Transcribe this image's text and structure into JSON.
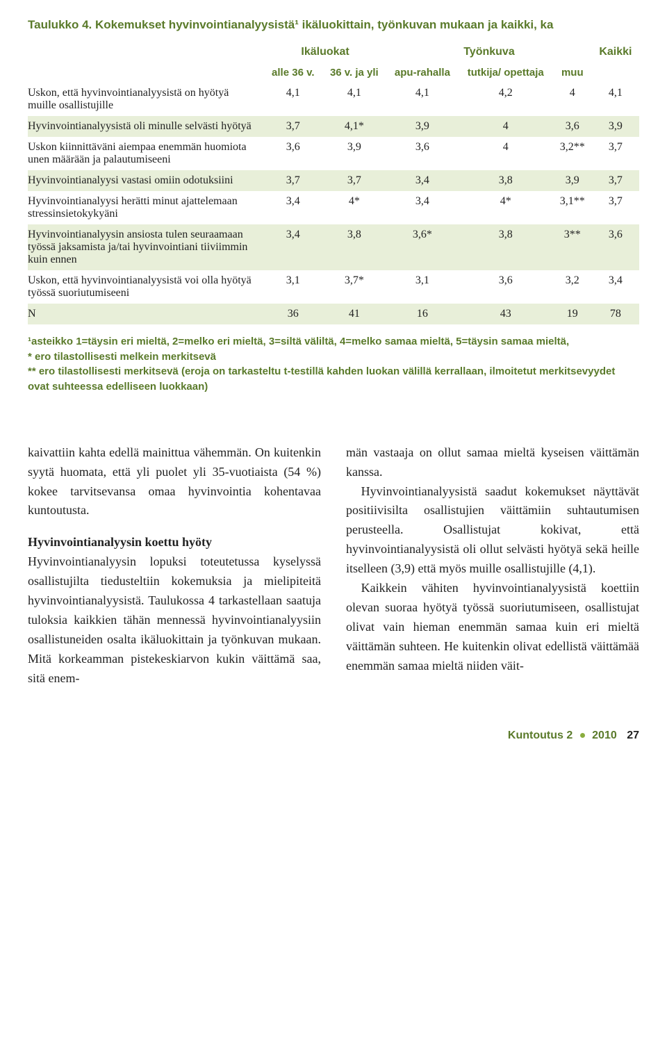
{
  "colors": {
    "accent": "#5a7a2a",
    "shade_bg": "#e8efd9",
    "text": "#222222",
    "page_bg": "#ffffff",
    "dot": "#8aad3e"
  },
  "typography": {
    "title_font": "Arial, sans-serif",
    "title_size_pt": 13,
    "body_font": "Georgia, serif",
    "body_size_pt": 13.5
  },
  "table": {
    "title": "Taulukko 4. Kokemukset hyvinvointianalyysistä¹ ikäluokittain, työnkuvan mukaan ja kaikki, ka",
    "group_headers": {
      "col0": "",
      "ikaluokat": "Ikäluokat",
      "tyonkuva": "Työnkuva",
      "kaikki": "Kaikki"
    },
    "sub_headers": {
      "c1": "alle 36 v.",
      "c2": "36 v. ja yli",
      "c3": "apu-rahalla",
      "c4": "tutkija/ opettaja",
      "c5": "muu"
    },
    "rows": [
      {
        "shade": false,
        "label": "Uskon, että hyvinvointianalyysistä on hyötyä muille osallistujille",
        "v": [
          "4,1",
          "4,1",
          "4,1",
          "4,2",
          "4",
          "4,1"
        ]
      },
      {
        "shade": true,
        "label": "Hyvinvointianalyysistä oli minulle selvästi hyötyä",
        "v": [
          "3,7",
          "4,1*",
          "3,9",
          "4",
          "3,6",
          "3,9"
        ]
      },
      {
        "shade": false,
        "label": "Uskon kiinnittäväni aiempaa enemmän huomiota unen määrään ja palautumiseeni",
        "v": [
          "3,6",
          "3,9",
          "3,6",
          "4",
          "3,2**",
          "3,7"
        ]
      },
      {
        "shade": true,
        "label": "Hyvinvointianalyysi vastasi omiin odotuksiini",
        "v": [
          "3,7",
          "3,7",
          "3,4",
          "3,8",
          "3,9",
          "3,7"
        ]
      },
      {
        "shade": false,
        "label": "Hyvinvointianalyysi herätti minut ajattelemaan stressinsietokykyäni",
        "v": [
          "3,4",
          "4*",
          "3,4",
          "4*",
          "3,1**",
          "3,7"
        ]
      },
      {
        "shade": true,
        "label": "Hyvinvointianalyysin ansiosta tulen seuraamaan työssä jaksamista ja/tai hyvinvointiani tiiviimmin kuin ennen",
        "v": [
          "3,4",
          "3,8",
          "3,6*",
          "3,8",
          "3**",
          "3,6"
        ]
      },
      {
        "shade": false,
        "label": "Uskon, että hyvinvointianalyysistä voi olla hyötyä työssä suoriutumiseeni",
        "v": [
          "3,1",
          "3,7*",
          "3,1",
          "3,6",
          "3,2",
          "3,4"
        ]
      },
      {
        "shade": true,
        "label": "N",
        "v": [
          "36",
          "41",
          "16",
          "43",
          "19",
          "78"
        ],
        "n_row": true
      }
    ]
  },
  "footnote": "¹asteikko 1=täysin eri mieltä, 2=melko eri mieltä, 3=siltä väliltä, 4=melko samaa mieltä, 5=täysin samaa mieltä,\n* ero tilastollisesti melkein merkitsevä\n** ero tilastollisesti merkitsevä (eroja on tarkasteltu t-testillä kahden luokan välillä kerrallaan, ilmoitetut merkitsevyydet ovat suhteessa edelliseen luokkaan)",
  "body": {
    "left": {
      "p1": "kaivattiin kahta edellä mainittua vähemmän. On kuitenkin syytä huomata, että yli puolet yli 35-vuotiaista (54 %) kokee tarvitsevansa omaa hyvinvointia kohentavaa kuntoutusta.",
      "subhead": "Hyvinvointianalyysin koettu hyöty",
      "p2": "Hyvinvointianalyysin lopuksi toteutetussa kyselyssä osallistujilta tiedusteltiin koke­muksia ja mielipiteitä hyvinvointianalyysis­tä. Taulukossa 4 tarkastellaan saatuja tuloksia kaikkien tähän mennessä hyvinvointiana­lyysiin osallistuneiden osalta ikäluokittain ja työnkuvan mukaan. Mitä korkeamman pis­tekeskiarvon kukin väittämä saa, sitä enem-"
    },
    "right": {
      "p1": "män vastaaja on ollut samaa mieltä kyseisen väittämän kanssa.",
      "p2": "Hyvinvointianalyysistä saadut koke­mukset näyttävät positiivisilta osallistujien väittämiin suhtautumisen perusteella. Osal­listujat kokivat, että hyvinvointianalyysistä oli ollut selvästi hyötyä sekä heille itselleen (3,9) että myös muille osallistujille (4,1).",
      "p3": "Kaikkein vähiten hyvinvointianalyysis­tä koettiin olevan suoraa hyötyä työssä suo­riutumiseen, osallistujat olivat vain hieman enemmän samaa kuin eri mieltä väittämän suhteen. He kuitenkin olivat edellistä väit­tämää enemmän samaa mieltä niiden väit-"
    }
  },
  "footer": {
    "journal": "Kuntoutus 2",
    "year": "2010",
    "page": "27"
  }
}
